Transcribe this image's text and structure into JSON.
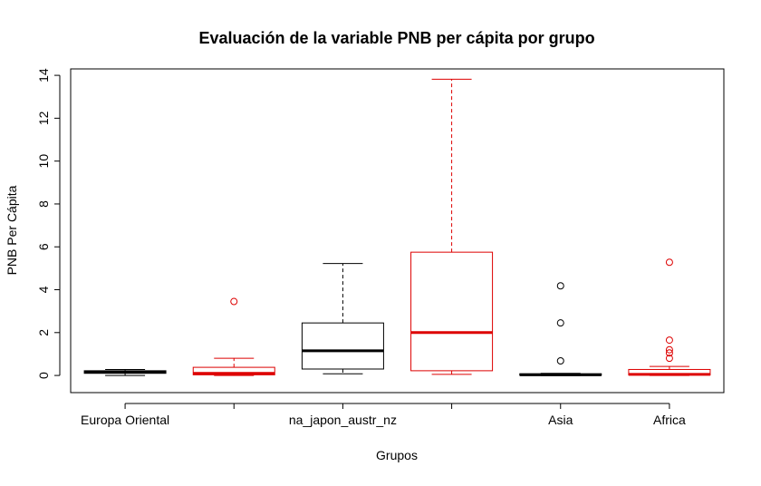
{
  "chart_data": {
    "type": "boxplot",
    "title": "Evaluación de la variable PNB per cápita por grupo",
    "xlabel": "Grupos",
    "ylabel": "PNB Per Cápita",
    "ylim": [
      -0.8,
      14.3
    ],
    "yticks": [
      0,
      2,
      4,
      6,
      8,
      10,
      12,
      14
    ],
    "tick_labels": [
      "Europa Oriental",
      "",
      "na_japon_austr_nz",
      "",
      "Asia",
      "Africa"
    ],
    "colors": [
      "#000000",
      "#dd0000"
    ],
    "boxes": [
      {
        "label": "Europa Oriental",
        "color": "#000000",
        "whisker_low": 0.0,
        "q1": 0.1,
        "median": 0.15,
        "q3": 0.22,
        "whisker_high": 0.28,
        "outliers": []
      },
      {
        "label": "",
        "color": "#dd0000",
        "whisker_low": 0.0,
        "q1": 0.03,
        "median": 0.1,
        "q3": 0.38,
        "whisker_high": 0.8,
        "outliers": [
          3.45
        ]
      },
      {
        "label": "na_japon_austr_nz",
        "color": "#000000",
        "whisker_low": 0.08,
        "q1": 0.3,
        "median": 1.15,
        "q3": 2.45,
        "whisker_high": 5.22,
        "outliers": []
      },
      {
        "label": "",
        "color": "#dd0000",
        "whisker_low": 0.05,
        "q1": 0.22,
        "median": 2.0,
        "q3": 5.75,
        "whisker_high": 13.82,
        "outliers": []
      },
      {
        "label": "Asia",
        "color": "#000000",
        "whisker_low": 0.0,
        "q1": 0.01,
        "median": 0.03,
        "q3": 0.08,
        "whisker_high": 0.1,
        "outliers": [
          0.68,
          2.45,
          4.18
        ]
      },
      {
        "label": "Africa",
        "color": "#dd0000",
        "whisker_low": 0.0,
        "q1": 0.02,
        "median": 0.05,
        "q3": 0.28,
        "whisker_high": 0.42,
        "outliers": [
          0.8,
          1.05,
          1.2,
          1.65,
          5.28
        ]
      }
    ]
  }
}
